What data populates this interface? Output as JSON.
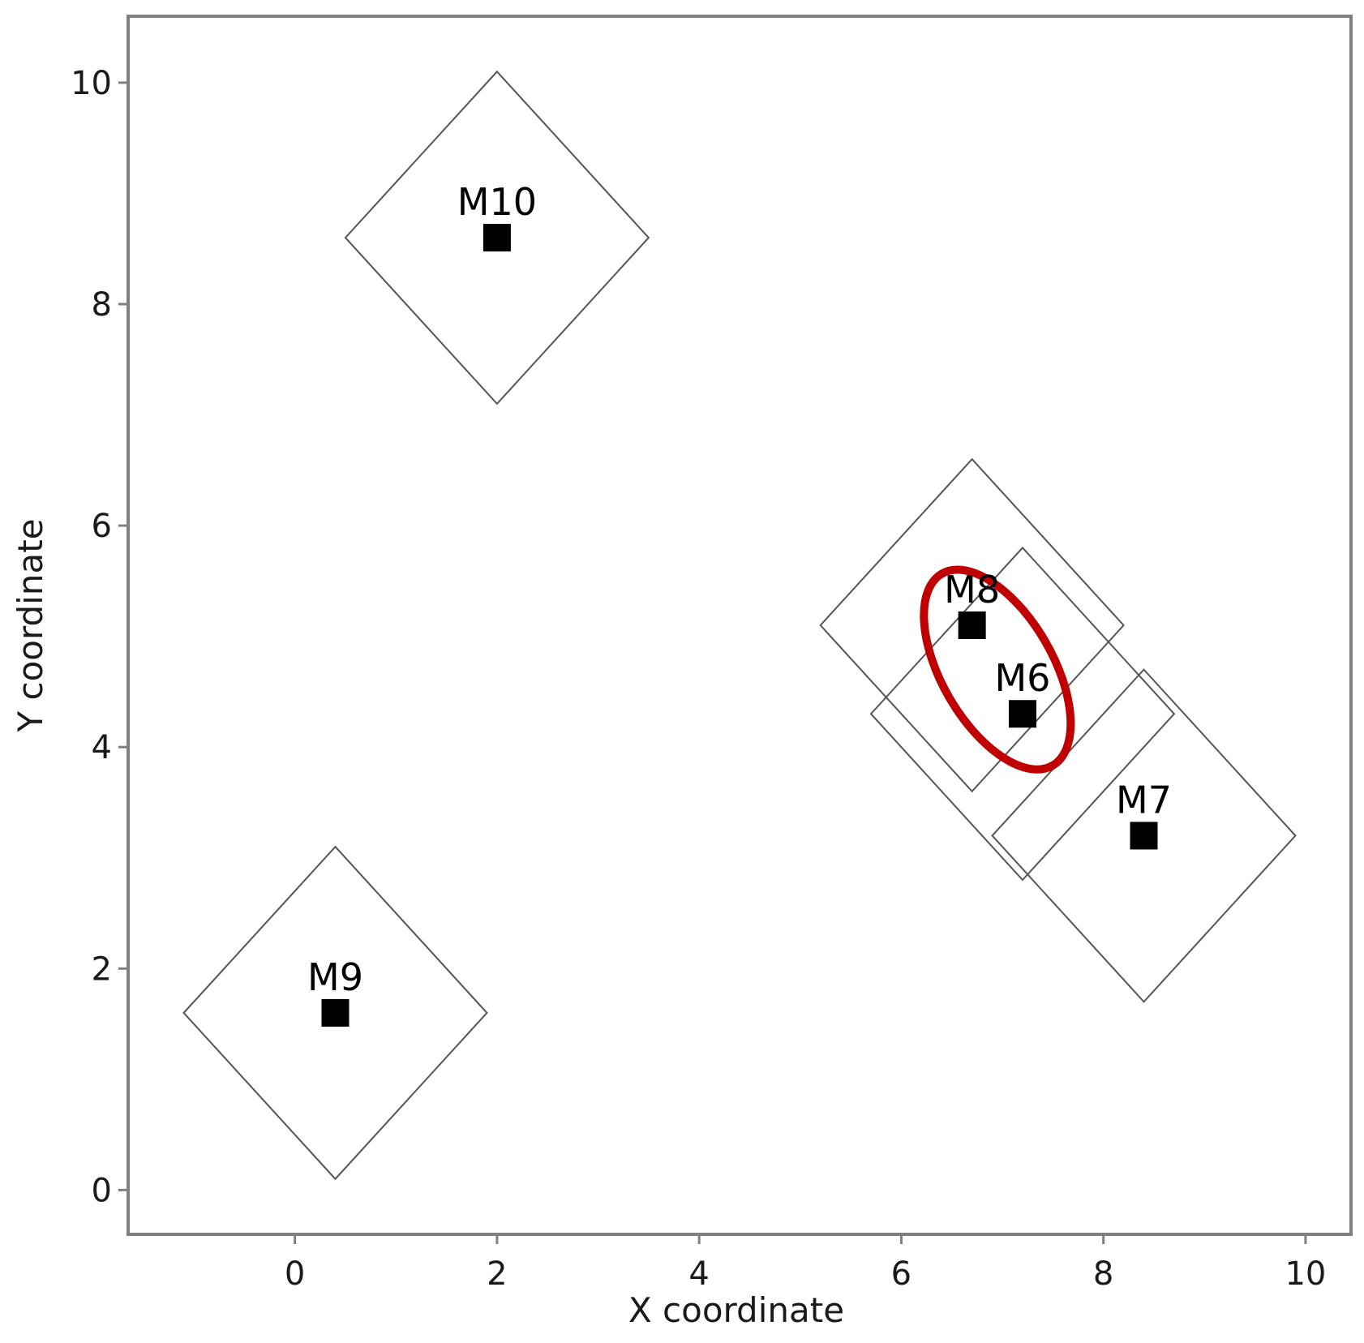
{
  "chart_data": {
    "type": "scatter",
    "title": "",
    "xlabel": "X coordinate",
    "ylabel": "Y coordinate",
    "xlim": [
      -1.65,
      10.45
    ],
    "ylim": [
      -0.4,
      10.6
    ],
    "xticks": [
      0,
      2,
      4,
      6,
      8,
      10
    ],
    "yticks": [
      0,
      2,
      4,
      6,
      8,
      10
    ],
    "grid": false,
    "points": [
      {
        "label": "M10",
        "x": 2.0,
        "y": 8.6,
        "radius": 1.5
      },
      {
        "label": "M8",
        "x": 6.7,
        "y": 5.1,
        "radius": 1.5
      },
      {
        "label": "M6",
        "x": 7.2,
        "y": 4.3,
        "radius": 1.5
      },
      {
        "label": "M7",
        "x": 8.4,
        "y": 3.2,
        "radius": 1.5
      },
      {
        "label": "M9",
        "x": 0.4,
        "y": 1.6,
        "radius": 1.5
      }
    ],
    "highlight": {
      "cx": 6.95,
      "cy": 4.7,
      "rx": 0.55,
      "ry": 1.0,
      "angle_deg": -30,
      "color": "#c00000",
      "encloses": [
        "M8",
        "M6"
      ]
    },
    "marker_color": "#000000",
    "diamond_color": "#555555"
  }
}
